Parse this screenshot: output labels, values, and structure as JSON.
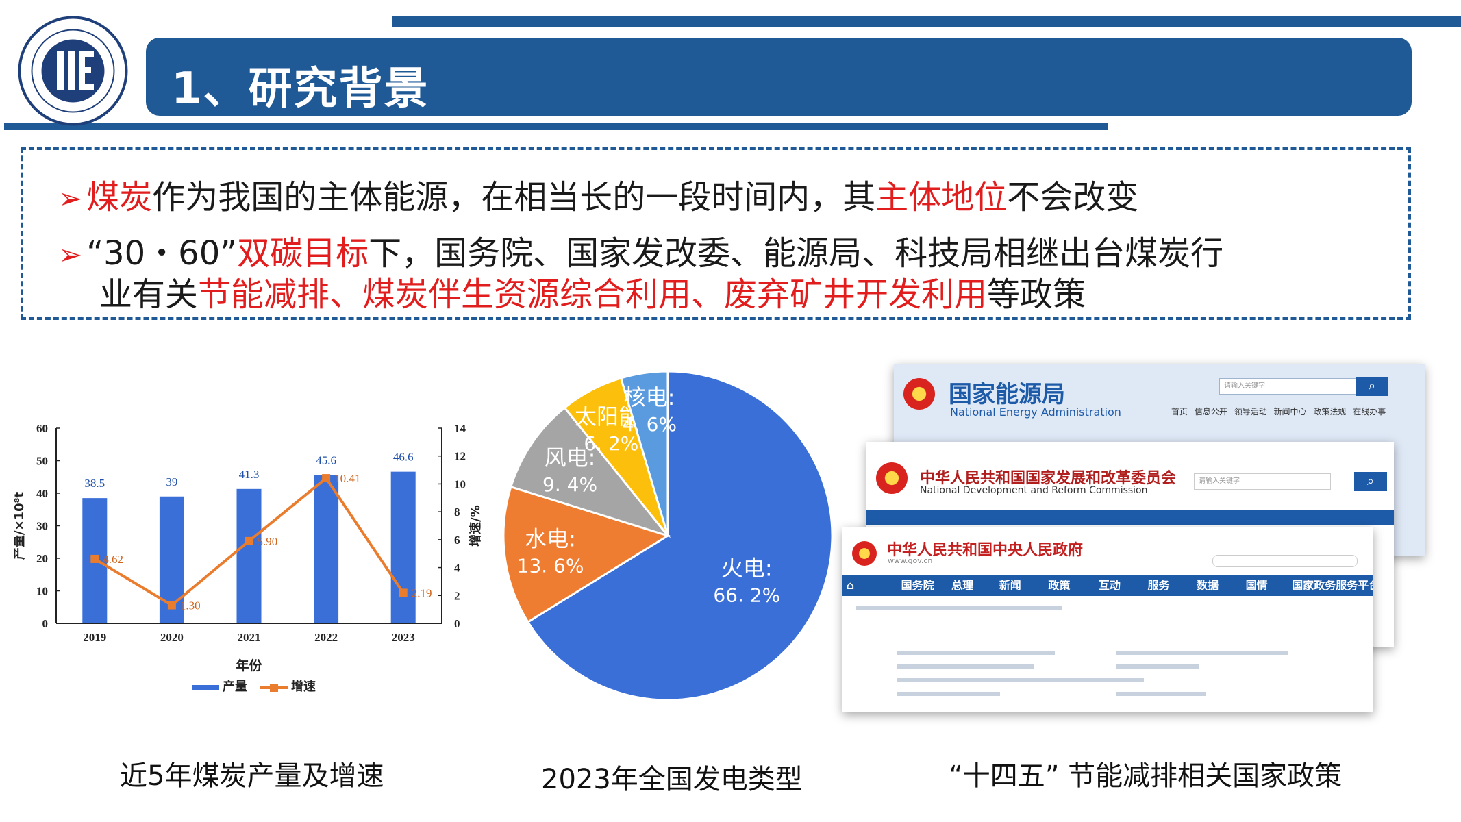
{
  "header": {
    "title": "1、研究背景"
  },
  "bullets": {
    "line1": {
      "p1": "煤炭",
      "p2": "作为我国的主体能源，在相当长的一段时间内，其",
      "p3": "主体地位",
      "p4": "不会改变"
    },
    "line2": {
      "p1": "“30・60”",
      "p2": "双碳目标",
      "p3": "下，国务院、国家发改委、能源局、科技局相继出台煤炭行"
    },
    "line3": {
      "p1": "业有关",
      "p2": "节能减排、煤炭伴生资源综合利用、废弃矿井开发利用",
      "p3": "等政策"
    }
  },
  "captions": {
    "left": "近5年煤炭产量及增速",
    "middle": "2023年全国发电类型",
    "right": "“十四五” 节能减排相关国家政策"
  },
  "colors": {
    "primary": "#1f5a96",
    "accent_red": "#e21d1d",
    "bar": "#3a6fd8",
    "line": "#ea7c2e"
  },
  "chart_data": [
    {
      "type": "bar",
      "categories": [
        "2019",
        "2020",
        "2021",
        "2022",
        "2023"
      ],
      "series": [
        {
          "name": "产量",
          "type": "bar",
          "values": [
            38.5,
            39,
            41.3,
            45.6,
            46.6
          ],
          "labels": [
            "38.5",
            "39",
            "41.3",
            "45.6",
            "46.6"
          ]
        },
        {
          "name": "增速",
          "type": "line",
          "values": [
            4.62,
            1.3,
            5.9,
            10.41,
            2.19
          ],
          "labels": [
            "4.62",
            "1.30",
            "5.90",
            "10.41",
            "2.19"
          ]
        }
      ],
      "xlabel": "年份",
      "ylabel": "产量/×10⁸t",
      "y2label": "增速/%",
      "ylim": [
        0,
        60
      ],
      "y2lim": [
        0,
        14
      ],
      "yticks": [
        "0",
        "10",
        "20",
        "30",
        "40",
        "50",
        "60"
      ],
      "y2ticks": [
        "0",
        "2",
        "4",
        "6",
        "8",
        "10",
        "12",
        "14"
      ],
      "legend": "bottom"
    },
    {
      "type": "pie",
      "slices": [
        {
          "name": "火电",
          "value": 66.2,
          "label_value": "66. 2%",
          "color": "#3a6fd8"
        },
        {
          "name": "水电",
          "value": 13.6,
          "label_value": "13. 6%",
          "color": "#ee7d31"
        },
        {
          "name": "风电",
          "value": 9.4,
          "label_value": "9. 4%",
          "color": "#a5a5a5"
        },
        {
          "name": "太阳能",
          "value": 6.2,
          "label_value": "6. 2%",
          "color": "#fcc00c"
        },
        {
          "name": "核电",
          "value": 4.6,
          "label_value": "4. 6%",
          "color": "#5a9be0"
        }
      ]
    }
  ],
  "policy_sites": {
    "nea": {
      "title": "国家能源局",
      "sub": "National Energy Administration",
      "search_placeholder": "请输入关键字",
      "nav": [
        "首页",
        "信息公开",
        "领导活动",
        "新闻中心",
        "政策法规",
        "在线办事"
      ]
    },
    "ndrc": {
      "title": "中华人民共和国国家发展和改革委员会",
      "sub": "National Development and Reform Commission",
      "search_placeholder": "请输入关键字"
    },
    "gov": {
      "title": "中华人民共和国中央人民政府",
      "sub": "www.gov.cn",
      "nav": [
        "国务院",
        "总理",
        "新闻",
        "政策",
        "互动",
        "服务",
        "数据",
        "国情",
        "国家政务服务平台"
      ]
    }
  }
}
